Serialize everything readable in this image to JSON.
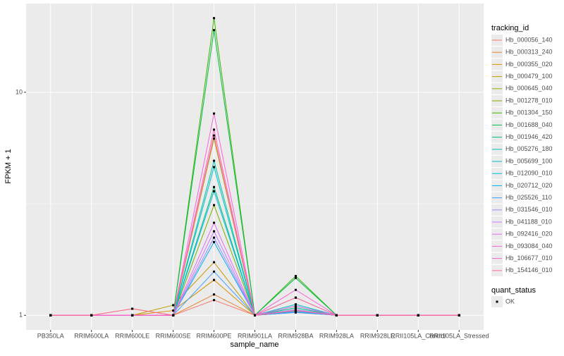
{
  "chart_data": {
    "type": "line",
    "y_label": "FPKM + 1",
    "x_label": "sample_name",
    "log_y": true,
    "grid": true,
    "categories": [
      "PB350LA",
      "RRIM600LA",
      "RRIM600LE",
      "RRIM600SE",
      "RRIM600PE",
      "RRIM901LA",
      "RRIM928BA",
      "RRIM928LA",
      "RRIM928LE",
      "RRII105LA_Control",
      "RRII105LA_Stressed"
    ],
    "ylim": [
      0.86,
      25
    ],
    "yticks": [
      1,
      10
    ],
    "legend_title": "tracking_id",
    "series": [
      {
        "name": "Hb_000056_140",
        "color": "#F8766D",
        "values": [
          1,
          1,
          1,
          1,
          1.17,
          1,
          1.03,
          1,
          1,
          1,
          1
        ]
      },
      {
        "name": "Hb_000313_240",
        "color": "#EA8331",
        "values": [
          1,
          1,
          1.07,
          1,
          1.24,
          1,
          1.04,
          1,
          1,
          1,
          1
        ]
      },
      {
        "name": "Hb_000355_020",
        "color": "#D89000",
        "values": [
          1,
          1,
          1,
          1.05,
          1.44,
          1,
          1.05,
          1,
          1,
          1,
          1
        ]
      },
      {
        "name": "Hb_000479_100",
        "color": "#C09B00",
        "values": [
          1,
          1,
          1,
          1.11,
          1.73,
          1,
          1.06,
          1,
          1,
          1,
          1
        ]
      },
      {
        "name": "Hb_000645_040",
        "color": "#A3A500",
        "values": [
          1,
          1,
          1,
          1,
          6.2,
          1,
          1.2,
          1,
          1,
          1,
          1
        ]
      },
      {
        "name": "Hb_001278_010",
        "color": "#7CAE00",
        "values": [
          1,
          1,
          1,
          1,
          3.12,
          1,
          1.08,
          1,
          1,
          1,
          1
        ]
      },
      {
        "name": "Hb_001304_150",
        "color": "#39B600",
        "values": [
          1,
          1,
          1,
          1,
          21.5,
          1,
          1.5,
          1,
          1,
          1,
          1
        ]
      },
      {
        "name": "Hb_001688_040",
        "color": "#00BB4E",
        "values": [
          1,
          1,
          1,
          1,
          19.0,
          1,
          1.47,
          1,
          1,
          1,
          1
        ]
      },
      {
        "name": "Hb_001946_420",
        "color": "#00BF7D",
        "values": [
          1,
          1,
          1,
          1,
          3.76,
          1,
          1.1,
          1,
          1,
          1,
          1
        ]
      },
      {
        "name": "Hb_005276_180",
        "color": "#00C1A3",
        "values": [
          1,
          1,
          1,
          1,
          4.93,
          1,
          1.08,
          1,
          1,
          1,
          1
        ]
      },
      {
        "name": "Hb_005699_100",
        "color": "#00BFC4",
        "values": [
          1,
          1,
          1,
          1,
          4.62,
          1,
          1.12,
          1,
          1,
          1,
          1
        ]
      },
      {
        "name": "Hb_012090_010",
        "color": "#00BAE0",
        "values": [
          1,
          1,
          1,
          1,
          3.6,
          1,
          1.06,
          1,
          1,
          1,
          1
        ]
      },
      {
        "name": "Hb_020712_020",
        "color": "#00B0F6",
        "values": [
          1,
          1,
          1,
          1,
          2.13,
          1,
          1.04,
          1,
          1,
          1,
          1
        ]
      },
      {
        "name": "Hb_025526_110",
        "color": "#35A2FF",
        "values": [
          1,
          1,
          1,
          1,
          1.57,
          1,
          1.03,
          1,
          1,
          1,
          1
        ]
      },
      {
        "name": "Hb_031546_010",
        "color": "#9590FF",
        "values": [
          1,
          1,
          1,
          1,
          2.23,
          1,
          1.05,
          1,
          1,
          1,
          1
        ]
      },
      {
        "name": "Hb_041188_010",
        "color": "#C77CFF",
        "values": [
          1,
          1,
          1,
          1,
          2.38,
          1,
          1.06,
          1,
          1,
          1,
          1
        ]
      },
      {
        "name": "Hb_092416_020",
        "color": "#E76BF3",
        "values": [
          1,
          1,
          1,
          1,
          2.6,
          1,
          1.1,
          1,
          1,
          1,
          1
        ]
      },
      {
        "name": "Hb_093084_040",
        "color": "#FA62DB",
        "values": [
          1,
          1,
          1,
          1,
          8.03,
          1,
          1.3,
          1,
          1,
          1,
          1
        ]
      },
      {
        "name": "Hb_106677_010",
        "color": "#FF62BC",
        "values": [
          1,
          1,
          1,
          1,
          6.8,
          1,
          1.2,
          1,
          1,
          1,
          1
        ]
      },
      {
        "name": "Hb_154146_010",
        "color": "#FF6C91",
        "values": [
          1,
          1,
          1.07,
          1,
          6.4,
          1,
          1.05,
          1,
          1,
          1,
          1
        ]
      }
    ],
    "quant_status": {
      "title": "quant_status",
      "labels": [
        "OK"
      ]
    }
  }
}
